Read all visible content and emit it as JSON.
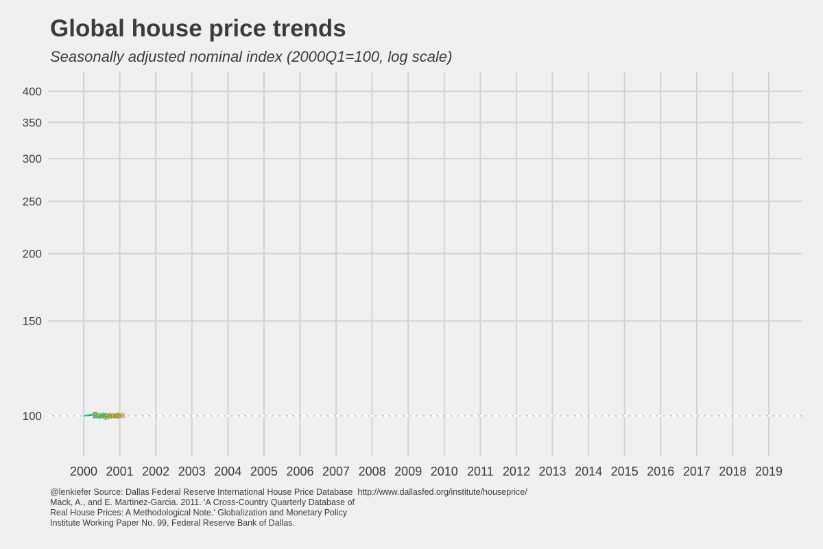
{
  "chart_data": {
    "type": "line",
    "title": "Global house price trends",
    "subtitle": "Seasonally adjusted nominal index (2000Q1=100, log scale)",
    "xlabel": "",
    "ylabel": "",
    "x_ticks": [
      "2000",
      "2001",
      "2002",
      "2003",
      "2004",
      "2005",
      "2006",
      "2007",
      "2008",
      "2009",
      "2010",
      "2011",
      "2012",
      "2013",
      "2014",
      "2015",
      "2016",
      "2017",
      "2018",
      "2019"
    ],
    "y_ticks": [
      100,
      150,
      200,
      250,
      300,
      350,
      400
    ],
    "y_scale": "log",
    "xlim": [
      2000,
      2019
    ],
    "ylim": [
      100,
      400
    ],
    "reference_line": {
      "y": 100,
      "style": "dashed"
    },
    "grid": true,
    "legend": "none",
    "series": [
      {
        "name": "Australia",
        "color": "#c77cff",
        "x": [
          2000.0,
          2000.25
        ],
        "y": [
          100,
          100.5
        ]
      },
      {
        "name": "Canada",
        "color": "#f8766d",
        "x": [
          2000.0,
          2000.25
        ],
        "y": [
          100,
          100.6
        ]
      },
      {
        "name": "Belgium",
        "color": "#e58700",
        "x": [
          2000.0,
          2000.25
        ],
        "y": [
          100,
          100.4
        ]
      },
      {
        "name": "Denmark",
        "color": "#a3a500",
        "x": [
          2000.0,
          2000.25
        ],
        "y": [
          100,
          100.8
        ]
      },
      {
        "name": "Finland",
        "color": "#39b600",
        "x": [
          2000.0,
          2000.25
        ],
        "y": [
          100,
          100.3
        ]
      },
      {
        "name": "Italy",
        "color": "#00bfc4",
        "x": [
          2000.0,
          2000.25
        ],
        "y": [
          100,
          100.5
        ]
      }
    ],
    "caption_lines": [
      "@lenkiefer Source: Dallas Federal Reserve International House Price Database  http://www.dallasfed.org/institute/houseprice/",
      "Mack, A., and E. Martinez-Garcia. 2011. 'A Cross-Country Quarterly Database of",
      "Real House Prices: A Methodological Note.' Globalization and Monetary Policy",
      "Institute Working Paper No. 99, Federal Reserve Bank of Dallas."
    ]
  }
}
